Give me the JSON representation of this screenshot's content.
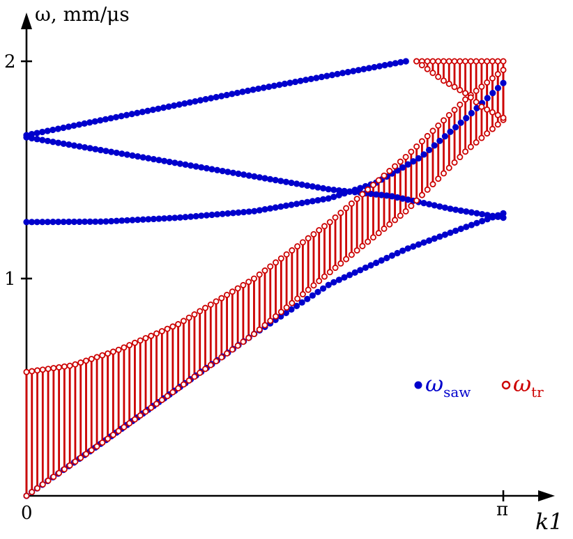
{
  "chart_data": {
    "type": "scatter",
    "xlabel": "k1",
    "ylabel": "ω, mm/μs",
    "xlim": [
      0,
      3.1416
    ],
    "ylim": [
      0,
      2.0
    ],
    "x_ticks": [
      {
        "value": 0,
        "label": "0"
      },
      {
        "value": 3.1416,
        "label": "π"
      }
    ],
    "y_ticks": [
      {
        "value": 1,
        "label": "1"
      },
      {
        "value": 2,
        "label": "2"
      }
    ],
    "legend": {
      "placement": "right",
      "entries": [
        {
          "name": "ω",
          "subscript": "saw",
          "color": "#0000cc",
          "marker": "filled-circle"
        },
        {
          "name": "ω",
          "subscript": "tr",
          "color": "#cc0000",
          "marker": "open-circle"
        }
      ]
    },
    "colors": {
      "saw": "#0000cc",
      "tr": "#cc0000",
      "overlap": "#7a1fc9",
      "axis": "#000000"
    },
    "saw_branches": [
      {
        "name": "branch-1",
        "points": [
          [
            0,
            0
          ],
          [
            0.5,
            0.245
          ],
          [
            1.0,
            0.495
          ],
          [
            1.5,
            0.745
          ],
          [
            2.0,
            0.975
          ],
          [
            2.5,
            1.135
          ],
          [
            2.75,
            1.2
          ],
          [
            3.1416,
            1.3
          ]
        ]
      },
      {
        "name": "branch-2",
        "points": [
          [
            0,
            1.26
          ],
          [
            0.5,
            1.262
          ],
          [
            1.0,
            1.28
          ],
          [
            1.5,
            1.31
          ],
          [
            2.0,
            1.37
          ],
          [
            2.3,
            1.44
          ],
          [
            2.6,
            1.56
          ],
          [
            2.9,
            1.74
          ],
          [
            3.1416,
            1.9
          ]
        ]
      },
      {
        "name": "branch-3",
        "points": [
          [
            0,
            1.65
          ],
          [
            0.5,
            1.59
          ],
          [
            1.0,
            1.53
          ],
          [
            1.5,
            1.47
          ],
          [
            2.0,
            1.41
          ],
          [
            2.4,
            1.38
          ],
          [
            2.8,
            1.32
          ],
          [
            3.1416,
            1.28
          ]
        ]
      },
      {
        "name": "branch-4",
        "points": [
          [
            0,
            1.66
          ],
          [
            0.5,
            1.73
          ],
          [
            1.0,
            1.8
          ],
          [
            1.5,
            1.87
          ],
          [
            2.0,
            1.935
          ],
          [
            2.5,
            2.0
          ]
        ]
      }
    ],
    "tr_bands": [
      {
        "name": "band-low",
        "k_range": [
          0,
          3.1416
        ],
        "upper": [
          [
            0,
            0.57
          ],
          [
            0.3,
            0.6
          ],
          [
            0.6,
            0.67
          ],
          [
            1.0,
            0.79
          ],
          [
            1.5,
            1.0
          ],
          [
            2.0,
            1.26
          ],
          [
            2.5,
            1.56
          ],
          [
            2.9,
            1.83
          ],
          [
            3.1416,
            1.96
          ]
        ],
        "lower": [
          [
            0,
            0
          ],
          [
            0.5,
            0.245
          ],
          [
            1.0,
            0.495
          ],
          [
            1.5,
            0.745
          ],
          [
            2.0,
            1.03
          ],
          [
            2.5,
            1.31
          ],
          [
            2.9,
            1.59
          ],
          [
            3.1416,
            1.73
          ]
        ]
      },
      {
        "name": "band-high",
        "k_range": [
          2.57,
          3.1416
        ],
        "upper": [
          [
            2.57,
            2.0
          ],
          [
            3.1416,
            2.0
          ]
        ],
        "lower": [
          [
            2.57,
            2.0
          ],
          [
            2.75,
            1.91
          ],
          [
            2.9,
            1.85
          ],
          [
            3.0,
            1.79
          ],
          [
            3.1416,
            1.74
          ]
        ]
      }
    ]
  }
}
